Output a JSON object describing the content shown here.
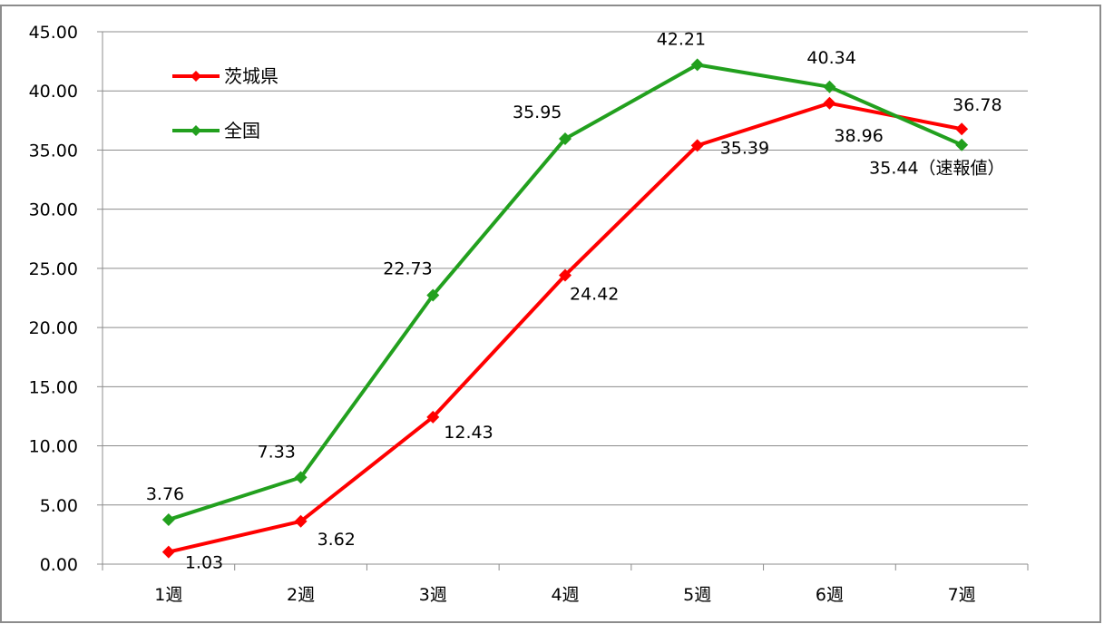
{
  "chart_data": {
    "type": "line",
    "categories": [
      "1週",
      "2週",
      "3週",
      "4週",
      "5週",
      "6週",
      "7週"
    ],
    "series": [
      {
        "name": "茨城県",
        "color": "#ff0000",
        "values": [
          1.03,
          3.62,
          12.43,
          24.42,
          35.39,
          38.96,
          36.78
        ],
        "labels": [
          "1.03",
          "3.62",
          "12.43",
          "24.42",
          "35.39",
          "38.96",
          "36.78"
        ]
      },
      {
        "name": "全国",
        "color": "#22a01e",
        "values": [
          3.76,
          7.33,
          22.73,
          35.95,
          42.21,
          40.34,
          35.44
        ],
        "labels": [
          "3.76",
          "7.33",
          "22.73",
          "35.95",
          "42.21",
          "40.34",
          "35.44（速報値）"
        ]
      }
    ],
    "title": "",
    "xlabel": "",
    "ylabel": "",
    "ylim": [
      0,
      45
    ],
    "yticks": [
      "0.00",
      "5.00",
      "10.00",
      "15.00",
      "20.00",
      "25.00",
      "30.00",
      "35.00",
      "40.00",
      "45.00"
    ],
    "grid": true,
    "legend_position": "top-left"
  }
}
